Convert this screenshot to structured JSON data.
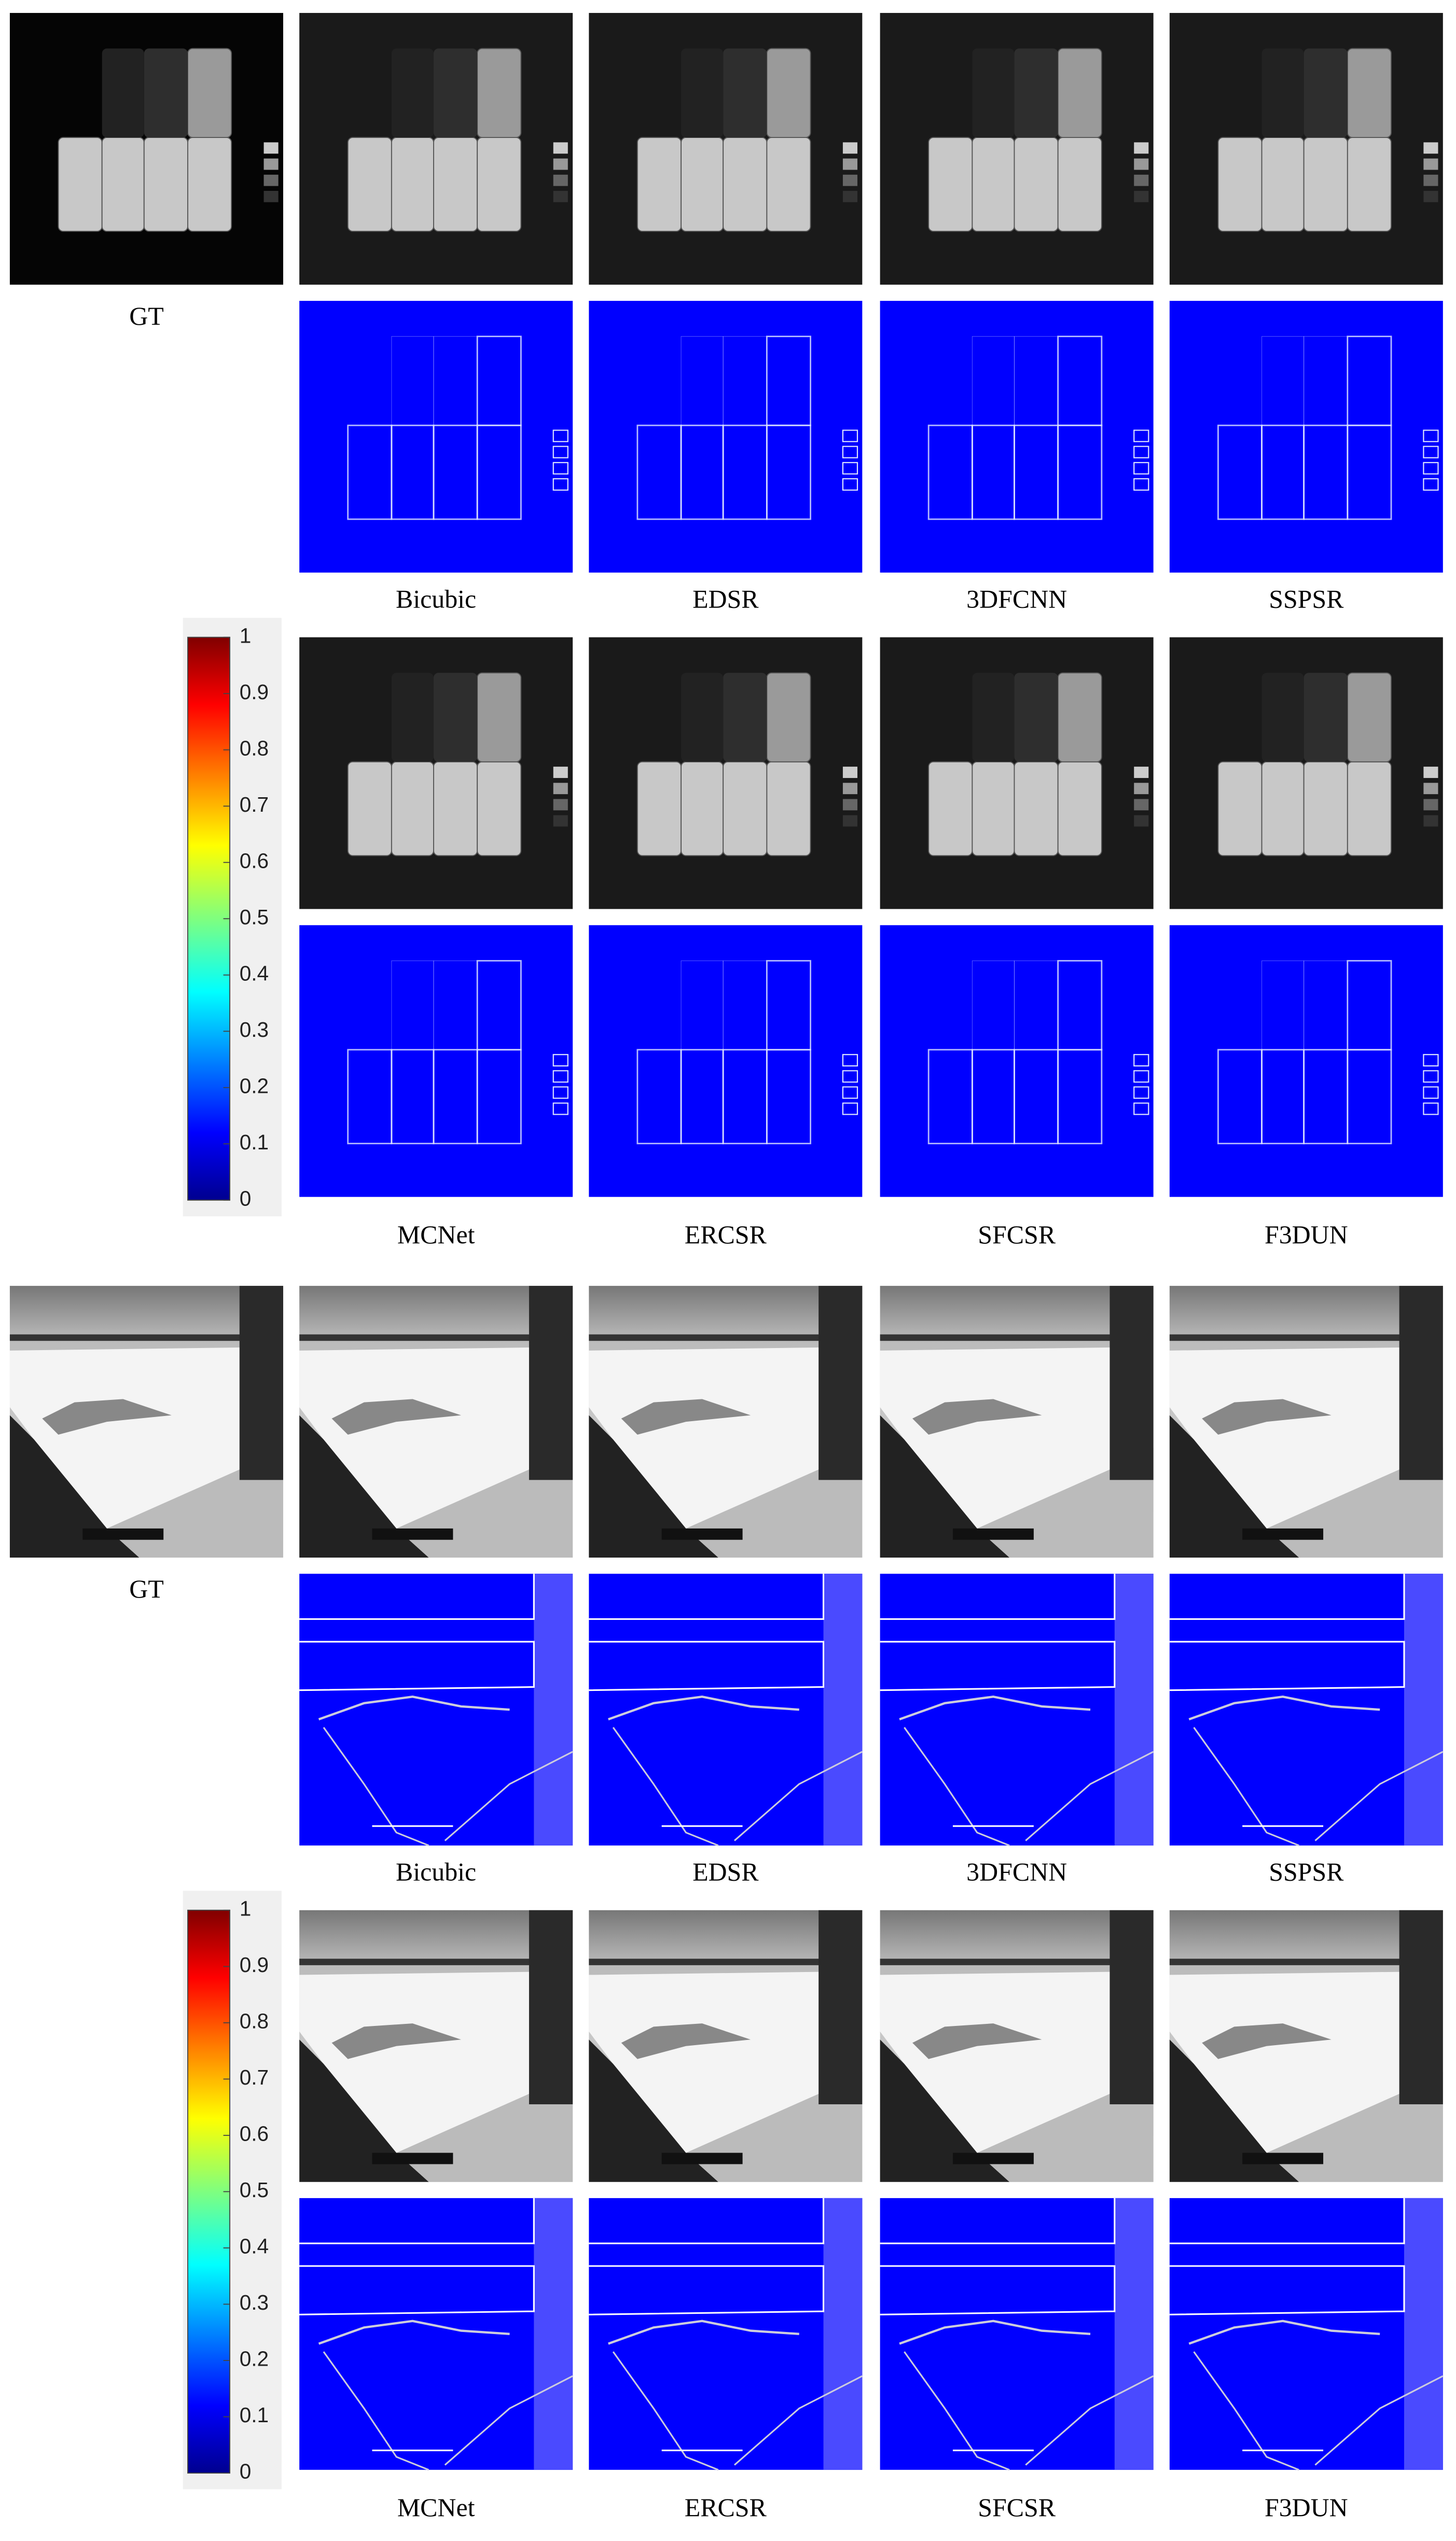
{
  "scenes": [
    {
      "gt_label": "GT",
      "methods_top": [
        "Bicubic",
        "EDSR",
        "3DFCNN",
        "SSPSR"
      ],
      "methods_bottom": [
        "MCNet",
        "ERCSR",
        "SFCSR",
        "F3DUN"
      ],
      "colorbar": {
        "range": [
          0,
          1
        ],
        "ticks": [
          0,
          0.1,
          0.2,
          0.3,
          0.4,
          0.5,
          0.6,
          0.7,
          0.8,
          0.9,
          1
        ]
      }
    },
    {
      "gt_label": "GT",
      "methods_top": [
        "Bicubic",
        "EDSR",
        "3DFCNN",
        "SSPSR"
      ],
      "methods_bottom": [
        "MCNet",
        "ERCSR",
        "SFCSR",
        "F3DUN"
      ],
      "colorbar": {
        "range": [
          0,
          1
        ],
        "ticks": [
          0,
          0.1,
          0.2,
          0.3,
          0.4,
          0.5,
          0.6,
          0.7,
          0.8,
          0.9,
          1
        ]
      }
    }
  ]
}
